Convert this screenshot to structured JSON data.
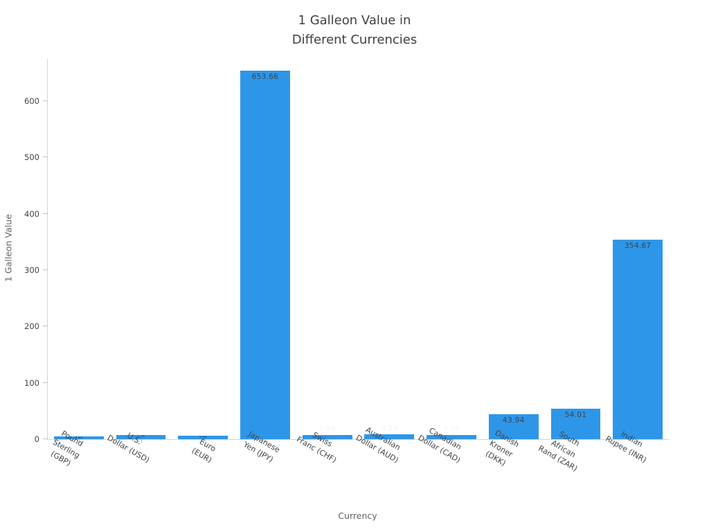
{
  "chart_data": {
    "type": "bar",
    "title": "1 Galleon Value in\nDifferent Currencies",
    "xlabel": "Currency",
    "ylabel": "1 Galleon Value",
    "ylim": [
      0,
      675
    ],
    "yticks": [
      0,
      100,
      200,
      300,
      400,
      500,
      600
    ],
    "bar_color": "#2E96E9",
    "grid": false,
    "legend": "none",
    "categories": [
      "Pound\nSterling (GBP)",
      "U.S.\nDollar (USD)",
      "Euro\n(EUR)",
      "Japanese\nYen (JPY)",
      "Swiss\nFranc (CHF)",
      "Australian\nDollar (AUD)",
      "Canadian\nDollar (CAD)",
      "Danish\nKroner (DKK)",
      "South\nAfrican Rand (ZAR)",
      "Indian\nRupee (INR)"
    ],
    "values": [
      4.93,
      7.35,
      5.92,
      653.66,
      7.94,
      8.23,
      7.79,
      43.94,
      54.01,
      354.67
    ],
    "value_labels": [
      {
        "text": "4.93",
        "style": "tiny"
      },
      {
        "text": "7.35",
        "style": "tiny"
      },
      {
        "text": "5.92",
        "style": "tiny"
      },
      {
        "text": "653.66",
        "style": "inside"
      },
      {
        "text": "7.94",
        "style": "faint"
      },
      {
        "text": "8.23",
        "style": "faint"
      },
      {
        "text": "7.79",
        "style": "faint"
      },
      {
        "text": "43.94",
        "style": "inside"
      },
      {
        "text": "54.01",
        "style": "inside"
      },
      {
        "text": "354.67",
        "style": "inside"
      }
    ]
  }
}
